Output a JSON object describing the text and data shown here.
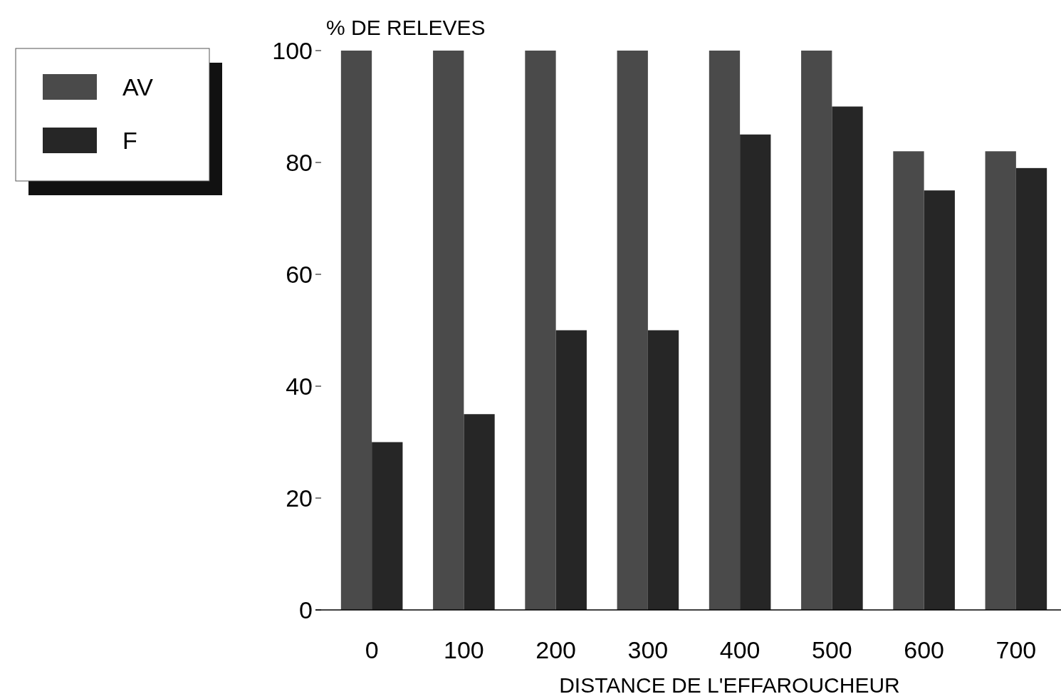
{
  "chart_data": {
    "type": "bar",
    "xlabel": "DISTANCE DE L'EFFAROUCHEUR",
    "ylabel": "% DE RELEVES",
    "categories": [
      "0",
      "100",
      "200",
      "300",
      "400",
      "500",
      "600",
      "700"
    ],
    "series": [
      {
        "name": "AV",
        "color": "#4a4a4a",
        "values": [
          100,
          100,
          100,
          100,
          100,
          100,
          82,
          82
        ]
      },
      {
        "name": "F",
        "color": "#262626",
        "values": [
          30,
          35,
          50,
          50,
          85,
          90,
          75,
          79
        ]
      }
    ],
    "ylim": [
      0,
      100
    ],
    "yticks": [
      0,
      20,
      40,
      60,
      80,
      100
    ],
    "grid": false,
    "legend": "top left"
  }
}
